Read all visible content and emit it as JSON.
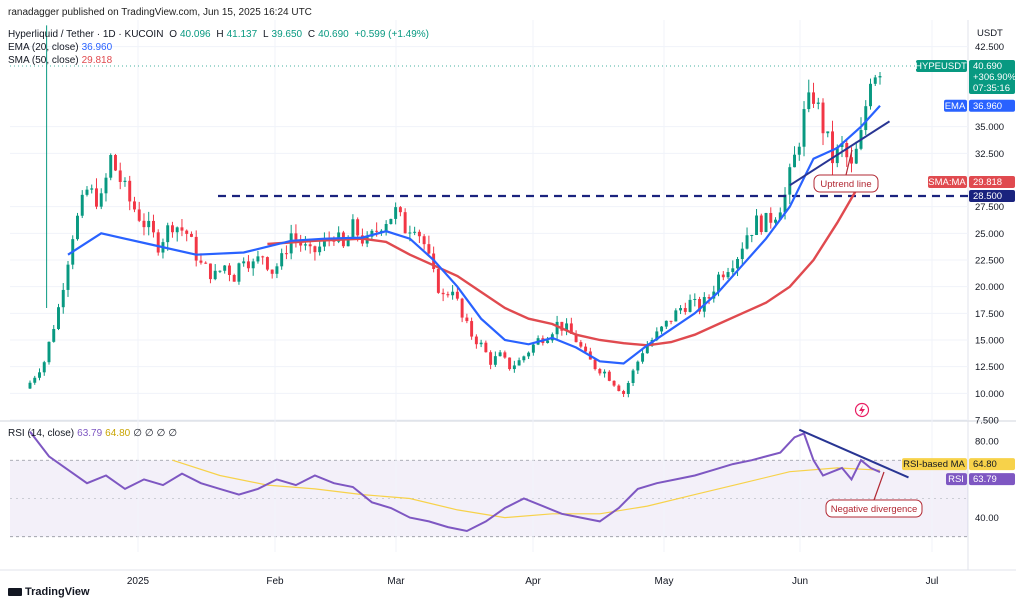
{
  "publisher": "ranadagger published on TradingView.com, Jun 15, 2025 16:24 UTC",
  "legend": {
    "symbol": "Hyperliquid / Tether · 1D · KUCOIN",
    "o_label": "O",
    "o": "40.096",
    "h_label": "H",
    "h": "41.137",
    "l_label": "L",
    "l": "39.650",
    "c_label": "C",
    "c": "40.690",
    "change": "+0.599 (+1.49%)",
    "ema_label": "EMA (20, close)",
    "ema_value": "36.960",
    "sma_label": "SMA (50, close)",
    "sma_value": "29.818"
  },
  "rsi_legend": {
    "label": "RSI (14, close)",
    "value": "63.79",
    "ma": "64.80",
    "empty": [
      "∅",
      "∅",
      "∅",
      "∅"
    ]
  },
  "price_axis": {
    "currency": "USDT",
    "ticks": [
      "42.500",
      "35.000",
      "32.500",
      "27.500",
      "25.000",
      "22.500",
      "20.000",
      "17.500",
      "15.000",
      "12.500",
      "10.000",
      "7.500"
    ]
  },
  "rsi_axis": {
    "ticks": [
      "80.00",
      "60.00",
      "40.00"
    ]
  },
  "badges": {
    "symbol": "HYPEUSDT",
    "price": "40.690",
    "pct": "+306.90%",
    "countdown": "07:35:16",
    "ema_label": "EMA",
    "ema_value": "36.960",
    "sma_label": "SMA:MA",
    "sma_value": "29.818",
    "level": "28.500",
    "rsi_ma_label": "RSI-based MA",
    "rsi_ma_value": "64.80",
    "rsi_label": "RSI",
    "rsi_value": "63.79"
  },
  "annotations": {
    "uptrend": "Uptrend line",
    "divergence": "Negative divergence",
    "horizontal_level": 28.5
  },
  "x_labels": [
    "2025",
    "Feb",
    "Mar",
    "Apr",
    "May",
    "Jun",
    "Jul"
  ],
  "footer": "TradingView",
  "colors": {
    "up": "#089981",
    "down": "#f23645",
    "ema": "#2962ff",
    "sma": "#e04a4f",
    "rsi": "#7e57c2",
    "rsi_ma": "#f7d24a",
    "level": "#1a237e",
    "trend": "#283593"
  },
  "chart_data": {
    "type": "candlestick",
    "interval": "1D",
    "price_range": [
      7.5,
      45
    ],
    "rsi_range": [
      22,
      90
    ],
    "candle_count": 180,
    "close_path": [
      [
        0,
        11
      ],
      [
        3,
        13
      ],
      [
        6,
        18
      ],
      [
        9,
        25
      ],
      [
        12,
        29
      ],
      [
        15,
        28
      ],
      [
        17,
        32
      ],
      [
        19,
        30
      ],
      [
        21,
        28
      ],
      [
        24,
        26
      ],
      [
        27,
        24
      ],
      [
        30,
        26
      ],
      [
        33,
        25
      ],
      [
        36,
        22
      ],
      [
        39,
        21
      ],
      [
        41,
        22
      ],
      [
        43,
        21
      ],
      [
        45,
        23
      ],
      [
        47,
        22
      ],
      [
        49,
        23
      ],
      [
        51,
        21.5
      ],
      [
        53,
        22.5
      ],
      [
        55,
        25
      ],
      [
        57,
        24
      ],
      [
        59,
        23
      ],
      [
        62,
        24
      ],
      [
        64,
        25
      ],
      [
        66,
        23.5
      ],
      [
        68,
        25.5
      ],
      [
        71,
        24
      ],
      [
        74,
        26
      ],
      [
        77,
        27
      ],
      [
        79,
        25.5
      ],
      [
        81,
        26
      ],
      [
        83,
        24
      ],
      [
        85,
        21
      ],
      [
        87,
        19
      ],
      [
        89,
        20
      ],
      [
        91,
        17
      ],
      [
        93,
        15.5
      ],
      [
        95,
        14.5
      ],
      [
        97,
        13
      ],
      [
        99,
        13.5
      ],
      [
        101,
        12.5
      ],
      [
        103,
        13
      ],
      [
        105,
        14
      ],
      [
        107,
        15
      ],
      [
        109,
        15.5
      ],
      [
        111,
        16.5
      ],
      [
        113,
        16
      ],
      [
        115,
        15
      ],
      [
        117,
        13.5
      ],
      [
        119,
        12.5
      ],
      [
        121,
        12
      ],
      [
        123,
        11
      ],
      [
        125,
        10
      ],
      [
        127,
        12
      ],
      [
        129,
        14
      ],
      [
        131,
        15
      ],
      [
        133,
        16
      ],
      [
        135,
        17
      ],
      [
        137,
        18
      ],
      [
        139,
        18.5
      ],
      [
        141,
        18
      ],
      [
        143,
        19
      ],
      [
        145,
        21
      ],
      [
        147,
        22
      ],
      [
        149,
        23
      ],
      [
        151,
        25
      ],
      [
        153,
        26
      ],
      [
        155,
        26
      ],
      [
        157,
        27
      ],
      [
        159,
        28.5
      ],
      [
        161,
        32
      ],
      [
        163,
        36
      ],
      [
        165,
        38
      ],
      [
        167,
        35
      ],
      [
        169,
        32
      ],
      [
        171,
        33
      ],
      [
        173,
        31
      ],
      [
        175,
        34
      ],
      [
        177,
        40
      ],
      [
        179,
        40.69
      ]
    ],
    "ema20": [
      [
        8,
        23
      ],
      [
        15,
        25
      ],
      [
        25,
        24
      ],
      [
        35,
        23
      ],
      [
        45,
        23.2
      ],
      [
        55,
        24.3
      ],
      [
        62,
        24.5
      ],
      [
        70,
        24.6
      ],
      [
        75,
        25.2
      ],
      [
        80,
        24.5
      ],
      [
        85,
        22.5
      ],
      [
        90,
        20
      ],
      [
        95,
        17
      ],
      [
        100,
        15
      ],
      [
        105,
        14.6
      ],
      [
        110,
        15.2
      ],
      [
        115,
        14.3
      ],
      [
        120,
        13
      ],
      [
        125,
        12.8
      ],
      [
        130,
        14.5
      ],
      [
        135,
        16
      ],
      [
        140,
        17.5
      ],
      [
        145,
        19.5
      ],
      [
        150,
        22
      ],
      [
        155,
        24.5
      ],
      [
        160,
        27.5
      ],
      [
        165,
        32
      ],
      [
        170,
        33
      ],
      [
        175,
        35
      ],
      [
        179,
        36.96
      ]
    ],
    "sma50": [
      [
        50,
        24
      ],
      [
        60,
        24.3
      ],
      [
        70,
        24.5
      ],
      [
        75,
        24.2
      ],
      [
        80,
        23
      ],
      [
        85,
        22
      ],
      [
        90,
        21
      ],
      [
        95,
        19.5
      ],
      [
        100,
        18
      ],
      [
        105,
        17
      ],
      [
        110,
        16.5
      ],
      [
        115,
        15.5
      ],
      [
        120,
        15
      ],
      [
        125,
        14.7
      ],
      [
        130,
        14.5
      ],
      [
        135,
        14.8
      ],
      [
        140,
        15.5
      ],
      [
        145,
        16.5
      ],
      [
        150,
        17.5
      ],
      [
        155,
        18.5
      ],
      [
        160,
        20
      ],
      [
        165,
        22.5
      ],
      [
        170,
        26
      ],
      [
        175,
        29.818
      ]
    ],
    "rsi14": [
      [
        0,
        85
      ],
      [
        4,
        72
      ],
      [
        8,
        65
      ],
      [
        12,
        58
      ],
      [
        16,
        62
      ],
      [
        20,
        55
      ],
      [
        24,
        60
      ],
      [
        28,
        57
      ],
      [
        32,
        63
      ],
      [
        36,
        58
      ],
      [
        40,
        55
      ],
      [
        44,
        52
      ],
      [
        48,
        55
      ],
      [
        52,
        60
      ],
      [
        56,
        57
      ],
      [
        60,
        62
      ],
      [
        64,
        58
      ],
      [
        68,
        56
      ],
      [
        72,
        48
      ],
      [
        76,
        45
      ],
      [
        80,
        40
      ],
      [
        84,
        38
      ],
      [
        88,
        35
      ],
      [
        92,
        33
      ],
      [
        96,
        38
      ],
      [
        100,
        45
      ],
      [
        104,
        50
      ],
      [
        108,
        46
      ],
      [
        112,
        42
      ],
      [
        116,
        40
      ],
      [
        120,
        38
      ],
      [
        124,
        45
      ],
      [
        128,
        55
      ],
      [
        132,
        58
      ],
      [
        136,
        60
      ],
      [
        140,
        62
      ],
      [
        144,
        65
      ],
      [
        148,
        68
      ],
      [
        152,
        70
      ],
      [
        155,
        72
      ],
      [
        158,
        74
      ],
      [
        161,
        82
      ],
      [
        163,
        84
      ],
      [
        165,
        70
      ],
      [
        167,
        62
      ],
      [
        169,
        64
      ],
      [
        171,
        66
      ],
      [
        173,
        60
      ],
      [
        175,
        70
      ],
      [
        177,
        66
      ],
      [
        179,
        63.79
      ]
    ],
    "rsi_ma": [
      [
        30,
        70
      ],
      [
        40,
        62
      ],
      [
        50,
        57
      ],
      [
        60,
        55
      ],
      [
        70,
        52
      ],
      [
        80,
        50
      ],
      [
        90,
        44
      ],
      [
        100,
        40
      ],
      [
        110,
        42
      ],
      [
        120,
        42
      ],
      [
        130,
        46
      ],
      [
        140,
        52
      ],
      [
        150,
        58
      ],
      [
        160,
        64
      ],
      [
        170,
        66
      ],
      [
        179,
        64.8
      ]
    ],
    "uptrend_line": [
      [
        160,
        29.5
      ],
      [
        181,
        35.5
      ]
    ],
    "divergence_line": [
      [
        162,
        86
      ],
      [
        185,
        61
      ]
    ]
  }
}
